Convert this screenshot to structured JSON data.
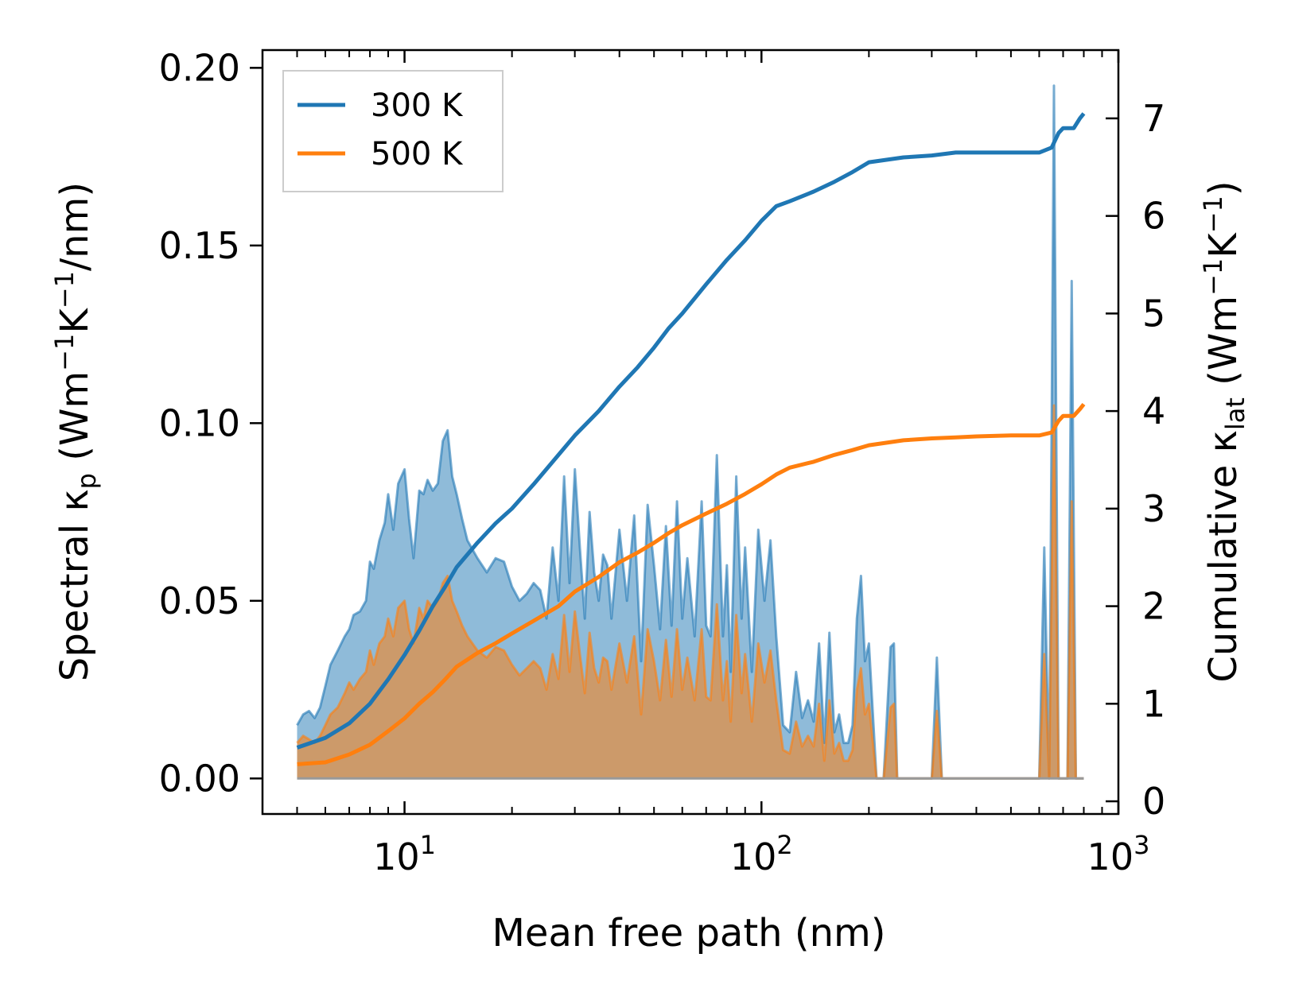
{
  "chart_data": {
    "type": "line",
    "xscale": "log",
    "xlabel": "Mean free path (nm)",
    "xlim": [
      4.0,
      1000
    ],
    "xticks": [
      {
        "base": "10",
        "exp": "1",
        "value": 10
      },
      {
        "base": "10",
        "exp": "2",
        "value": 100
      },
      {
        "base": "10",
        "exp": "3",
        "value": 1000
      }
    ],
    "y_left": {
      "label_parts": [
        "Spectral κ",
        "p",
        " (Wm",
        "−1",
        "K",
        "−1",
        "/nm)"
      ],
      "ylim": [
        -0.01,
        0.205
      ],
      "ticks": [
        0.0,
        0.05,
        0.1,
        0.15,
        0.2
      ],
      "tick_labels": [
        "0.00",
        "0.05",
        "0.10",
        "0.15",
        "0.20"
      ]
    },
    "y_right": {
      "label_parts": [
        "Cumulative κ",
        "lat",
        " (Wm",
        "−1",
        "K",
        "−1",
        ")"
      ],
      "ylim": [
        -0.13,
        7.7
      ],
      "ticks": [
        0,
        1,
        2,
        3,
        4,
        5,
        6,
        7
      ],
      "tick_labels": [
        "0",
        "1",
        "2",
        "3",
        "4",
        "5",
        "6",
        "7"
      ]
    },
    "legend": {
      "position": "top-left",
      "entries": [
        {
          "label": "300 K",
          "color": "#1f77b4"
        },
        {
          "label": "500 K",
          "color": "#ff7f0e"
        }
      ]
    },
    "series": [
      {
        "name": "300 K",
        "color": "#1f77b4",
        "axis_role": "spectral",
        "x": [
          5.0,
          5.2,
          5.4,
          5.6,
          5.8,
          6.0,
          6.2,
          6.5,
          6.8,
          7.0,
          7.2,
          7.5,
          7.8,
          8.0,
          8.2,
          8.5,
          8.8,
          9.0,
          9.3,
          9.6,
          10.0,
          10.3,
          10.6,
          11.0,
          11.3,
          11.6,
          12.0,
          12.4,
          12.8,
          13.2,
          13.6,
          14.0,
          14.5,
          15.0,
          16.0,
          17.0,
          18.0,
          19.0,
          20.0,
          21.0,
          22.0,
          23.0,
          24.0,
          25.0,
          26.0,
          27.0,
          28.0,
          29.0,
          30.0,
          31.0,
          32.0,
          33.0,
          34.0,
          35.0,
          36.0,
          37.0,
          38.0,
          40.0,
          42.0,
          44.0,
          46.0,
          48.0,
          50.0,
          52.0,
          54.0,
          56.0,
          58.0,
          60.0,
          62.0,
          65.0,
          68.0,
          70.0,
          72.0,
          75.0,
          78.0,
          80.0,
          82.0,
          85.0,
          88.0,
          90.0,
          94.0,
          98.0,
          102.0,
          106.0,
          110.0,
          115.0,
          120.0,
          125.0,
          130.0,
          135.0,
          140.0,
          145.0,
          150.0,
          155.0,
          160.0,
          165.0,
          170.0,
          175.0,
          180.0,
          185.0,
          190.0,
          195.0,
          200.0,
          210.0,
          215.0,
          220.0,
          230.0,
          235.0,
          240.0,
          250.0,
          260.0,
          270.0,
          300.0,
          310.0,
          320.0,
          330.0,
          340.0,
          350.0,
          600.0,
          620.0,
          640.0,
          660.0,
          680.0,
          700.0,
          720.0,
          740.0,
          760.0,
          780.0,
          800.0
        ],
        "spectral": [
          0.015,
          0.018,
          0.019,
          0.017,
          0.02,
          0.026,
          0.032,
          0.036,
          0.04,
          0.042,
          0.046,
          0.047,
          0.05,
          0.061,
          0.059,
          0.067,
          0.072,
          0.08,
          0.07,
          0.083,
          0.087,
          0.073,
          0.062,
          0.081,
          0.08,
          0.084,
          0.081,
          0.083,
          0.095,
          0.098,
          0.085,
          0.08,
          0.073,
          0.067,
          0.062,
          0.058,
          0.062,
          0.061,
          0.054,
          0.05,
          0.052,
          0.055,
          0.053,
          0.045,
          0.065,
          0.05,
          0.085,
          0.055,
          0.087,
          0.065,
          0.045,
          0.075,
          0.058,
          0.05,
          0.063,
          0.06,
          0.045,
          0.07,
          0.05,
          0.074,
          0.033,
          0.077,
          0.06,
          0.042,
          0.071,
          0.043,
          0.078,
          0.045,
          0.062,
          0.04,
          0.078,
          0.043,
          0.04,
          0.091,
          0.04,
          0.06,
          0.03,
          0.085,
          0.045,
          0.065,
          0.03,
          0.07,
          0.05,
          0.067,
          0.04,
          0.015,
          0.013,
          0.03,
          0.017,
          0.022,
          0.016,
          0.038,
          0.01,
          0.041,
          0.013,
          0.018,
          0.01,
          0.01,
          0.015,
          0.045,
          0.057,
          0.033,
          0.038,
          0.0,
          0.0,
          0.0,
          0.037,
          0.038,
          0.0,
          0.0,
          0.0,
          0.0,
          0.0,
          0.034,
          0.0,
          0.0,
          0.0,
          0.0,
          0.0,
          0.065,
          0.0,
          0.195,
          0.0,
          0.0,
          0.0,
          0.14,
          0.0,
          0.0,
          0.0
        ],
        "cumulative_x": [
          5,
          6,
          7,
          8,
          9,
          10,
          11,
          12,
          13,
          14,
          16,
          18,
          20,
          23,
          27,
          30,
          35,
          40,
          45,
          50,
          55,
          60,
          70,
          80,
          90,
          100,
          110,
          120,
          140,
          160,
          180,
          200,
          250,
          300,
          350,
          400,
          500,
          600,
          650,
          680,
          700,
          720,
          750,
          780,
          800
        ],
        "cumulative": [
          0.55,
          0.65,
          0.8,
          1.0,
          1.25,
          1.5,
          1.75,
          2.0,
          2.2,
          2.4,
          2.65,
          2.85,
          3.0,
          3.25,
          3.55,
          3.75,
          4.0,
          4.25,
          4.45,
          4.65,
          4.85,
          5.0,
          5.3,
          5.55,
          5.75,
          5.95,
          6.1,
          6.15,
          6.25,
          6.35,
          6.45,
          6.55,
          6.6,
          6.62,
          6.65,
          6.65,
          6.65,
          6.65,
          6.7,
          6.85,
          6.9,
          6.9,
          6.9,
          7.0,
          7.05
        ]
      },
      {
        "name": "500 K",
        "color": "#ff7f0e",
        "axis_role": "spectral",
        "x": [
          5.0,
          5.2,
          5.4,
          5.6,
          5.8,
          6.0,
          6.2,
          6.5,
          6.8,
          7.0,
          7.2,
          7.5,
          7.8,
          8.0,
          8.2,
          8.5,
          8.8,
          9.0,
          9.3,
          9.6,
          10.0,
          10.3,
          10.6,
          11.0,
          11.3,
          11.6,
          12.0,
          12.4,
          12.8,
          13.2,
          13.6,
          14.0,
          14.5,
          15.0,
          16.0,
          17.0,
          18.0,
          19.0,
          20.0,
          21.0,
          22.0,
          23.0,
          24.0,
          25.0,
          26.0,
          27.0,
          28.0,
          29.0,
          30.0,
          31.0,
          32.0,
          33.0,
          34.0,
          35.0,
          36.0,
          37.0,
          38.0,
          40.0,
          42.0,
          44.0,
          46.0,
          48.0,
          50.0,
          52.0,
          54.0,
          56.0,
          58.0,
          60.0,
          62.0,
          65.0,
          68.0,
          70.0,
          72.0,
          75.0,
          78.0,
          80.0,
          82.0,
          85.0,
          88.0,
          90.0,
          94.0,
          98.0,
          102.0,
          106.0,
          110.0,
          115.0,
          120.0,
          125.0,
          130.0,
          135.0,
          140.0,
          145.0,
          150.0,
          155.0,
          160.0,
          165.0,
          170.0,
          175.0,
          180.0,
          185.0,
          190.0,
          195.0,
          200.0,
          210.0,
          215.0,
          220.0,
          230.0,
          235.0,
          240.0,
          250.0,
          260.0,
          270.0,
          300.0,
          310.0,
          320.0,
          330.0,
          340.0,
          350.0,
          600.0,
          620.0,
          640.0,
          660.0,
          680.0,
          700.0,
          720.0,
          740.0,
          760.0,
          780.0,
          800.0
        ],
        "spectral": [
          0.01,
          0.012,
          0.011,
          0.01,
          0.012,
          0.015,
          0.018,
          0.02,
          0.024,
          0.027,
          0.025,
          0.028,
          0.03,
          0.036,
          0.032,
          0.038,
          0.04,
          0.045,
          0.04,
          0.048,
          0.05,
          0.042,
          0.038,
          0.048,
          0.045,
          0.05,
          0.048,
          0.05,
          0.055,
          0.057,
          0.05,
          0.047,
          0.043,
          0.04,
          0.036,
          0.034,
          0.037,
          0.036,
          0.032,
          0.029,
          0.031,
          0.033,
          0.031,
          0.025,
          0.035,
          0.028,
          0.046,
          0.03,
          0.047,
          0.035,
          0.024,
          0.041,
          0.031,
          0.027,
          0.034,
          0.033,
          0.025,
          0.038,
          0.027,
          0.04,
          0.018,
          0.042,
          0.033,
          0.022,
          0.039,
          0.023,
          0.042,
          0.025,
          0.034,
          0.022,
          0.042,
          0.023,
          0.022,
          0.049,
          0.022,
          0.033,
          0.016,
          0.046,
          0.024,
          0.035,
          0.016,
          0.038,
          0.027,
          0.036,
          0.022,
          0.008,
          0.007,
          0.016,
          0.009,
          0.012,
          0.009,
          0.021,
          0.005,
          0.022,
          0.007,
          0.01,
          0.005,
          0.005,
          0.008,
          0.025,
          0.031,
          0.018,
          0.021,
          0.0,
          0.0,
          0.0,
          0.02,
          0.021,
          0.0,
          0.0,
          0.0,
          0.0,
          0.0,
          0.019,
          0.0,
          0.0,
          0.0,
          0.0,
          0.0,
          0.035,
          0.0,
          0.105,
          0.0,
          0.0,
          0.0,
          0.078,
          0.0,
          0.0,
          0.0
        ],
        "cumulative_x": [
          5,
          6,
          7,
          8,
          9,
          10,
          11,
          12,
          13,
          14,
          16,
          18,
          20,
          23,
          27,
          30,
          35,
          40,
          45,
          50,
          55,
          60,
          70,
          80,
          90,
          100,
          110,
          120,
          140,
          160,
          180,
          200,
          250,
          300,
          350,
          400,
          500,
          600,
          650,
          680,
          700,
          720,
          750,
          780,
          800
        ],
        "cumulative": [
          0.38,
          0.4,
          0.48,
          0.58,
          0.72,
          0.85,
          1.0,
          1.12,
          1.25,
          1.38,
          1.52,
          1.62,
          1.72,
          1.85,
          2.0,
          2.15,
          2.3,
          2.45,
          2.55,
          2.65,
          2.75,
          2.83,
          2.95,
          3.05,
          3.15,
          3.25,
          3.35,
          3.42,
          3.48,
          3.55,
          3.6,
          3.65,
          3.7,
          3.72,
          3.73,
          3.74,
          3.75,
          3.75,
          3.78,
          3.9,
          3.95,
          3.95,
          3.95,
          4.02,
          4.07
        ]
      }
    ]
  }
}
